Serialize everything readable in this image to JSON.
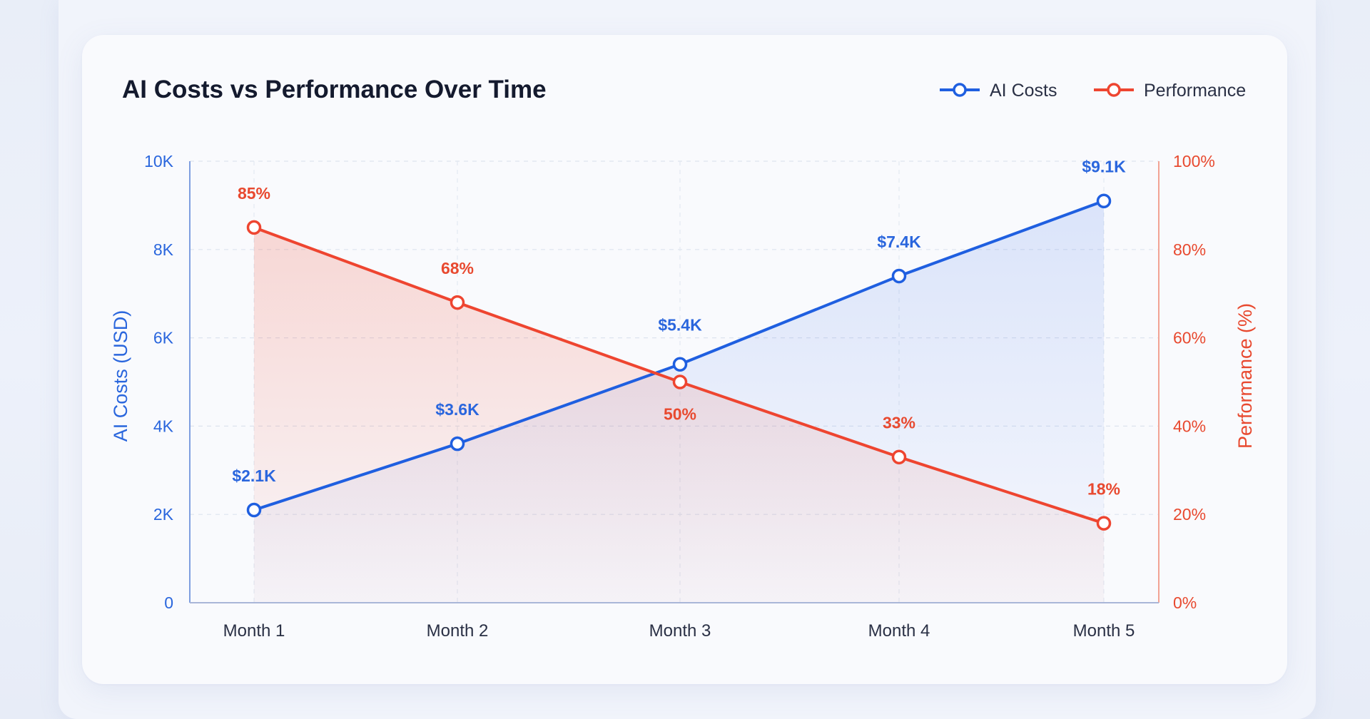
{
  "chart_data": {
    "type": "line",
    "title": "AI Costs vs Performance Over Time",
    "categories": [
      "Month 1",
      "Month 2",
      "Month 3",
      "Month 4",
      "Month 5"
    ],
    "series": [
      {
        "name": "AI Costs",
        "axis": "left",
        "color": "#1f5fe0",
        "values": [
          2100,
          3600,
          5400,
          7400,
          9100
        ],
        "labels": [
          "$2.1K",
          "$3.6K",
          "$5.4K",
          "$7.4K",
          "$9.1K"
        ]
      },
      {
        "name": "Performance",
        "axis": "right",
        "color": "#ee4530",
        "values": [
          85,
          68,
          50,
          33,
          18
        ],
        "labels": [
          "85%",
          "68%",
          "50%",
          "33%",
          "18%"
        ]
      }
    ],
    "y_left": {
      "label": "AI Costs (USD)",
      "range": [
        0,
        10000
      ],
      "ticks": [
        0,
        2000,
        4000,
        6000,
        8000,
        10000
      ],
      "tick_labels": [
        "0",
        "2K",
        "4K",
        "6K",
        "8K",
        "10K"
      ]
    },
    "y_right": {
      "label": "Performance (%)",
      "range": [
        0,
        100
      ],
      "ticks": [
        0,
        20,
        40,
        60,
        80,
        100
      ],
      "tick_labels": [
        "0%",
        "20%",
        "40%",
        "60%",
        "80%",
        "100%"
      ]
    },
    "grid": true,
    "legend_position": "top-right",
    "fill_under_lines": true
  }
}
